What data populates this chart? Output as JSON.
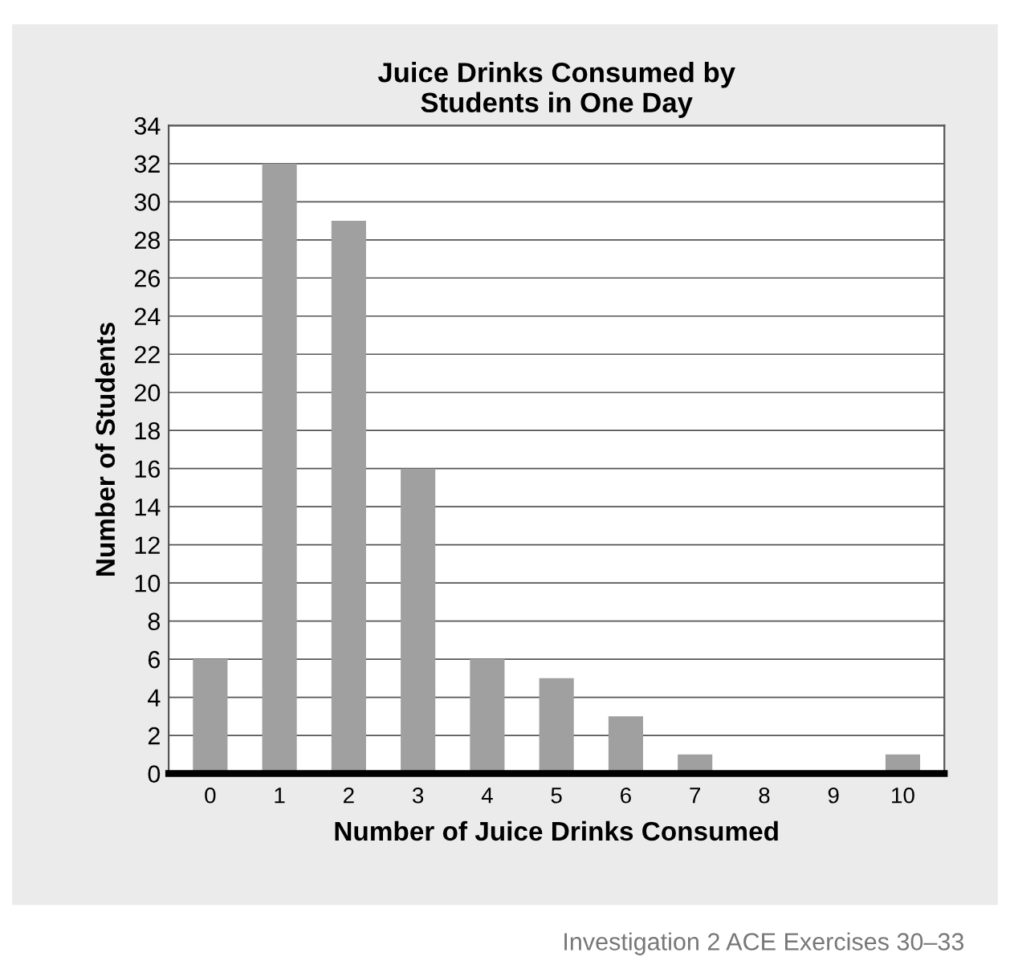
{
  "chart_data": {
    "type": "bar",
    "title": "Juice Drinks Consumed by\nStudents in One Day",
    "xlabel": "Number of Juice Drinks Consumed",
    "ylabel": "Number of Students",
    "categories": [
      "0",
      "1",
      "2",
      "3",
      "4",
      "5",
      "6",
      "7",
      "8",
      "9",
      "10"
    ],
    "values": [
      6,
      32,
      29,
      16,
      6,
      5,
      3,
      1,
      0,
      0,
      1
    ],
    "color": "#a0a0a0",
    "ylim": [
      0,
      34
    ],
    "yticks": [
      0,
      2,
      4,
      6,
      8,
      10,
      12,
      14,
      16,
      18,
      20,
      22,
      24,
      26,
      28,
      30,
      32,
      34
    ],
    "grid": "y",
    "annotations": [
      "Investigation 2 ACE Exercises 30–33"
    ]
  }
}
